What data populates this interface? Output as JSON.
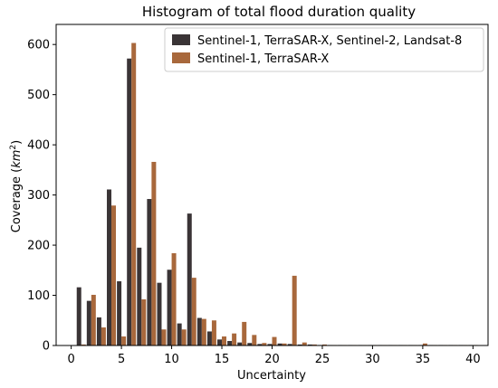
{
  "chart_data": {
    "type": "bar",
    "title": "Histogram of total flood duration quality",
    "xlabel": "Uncertainty",
    "ylabel_main": "Coverage (",
    "ylabel_unit": "km",
    "ylabel_sup": "2",
    "ylabel_close": ")",
    "xlim": [
      -1.5,
      41.5
    ],
    "ylim": [
      0,
      640
    ],
    "xticks": [
      0,
      5,
      10,
      15,
      20,
      25,
      30,
      35,
      40
    ],
    "yticks": [
      0,
      100,
      200,
      300,
      400,
      500,
      600
    ],
    "legend_position": "top-right",
    "bar_width": 0.45,
    "series": [
      {
        "name": "Sentinel-1, TerraSAR-X, Sentinel-2, Landsat-8",
        "color": "#3a3436",
        "offset": -0.225,
        "x": [
          1,
          2,
          3,
          4,
          5,
          6,
          7,
          8,
          9,
          10,
          11,
          12,
          13,
          14,
          15,
          16,
          17,
          18,
          19,
          20,
          21,
          22,
          23,
          24,
          25,
          26,
          27,
          28,
          29,
          30,
          31,
          32,
          33,
          34,
          35,
          36,
          37,
          38,
          39,
          40
        ],
        "values": [
          116,
          89,
          56,
          311,
          128,
          572,
          195,
          292,
          125,
          151,
          44,
          263,
          55,
          28,
          12,
          9,
          6,
          5,
          3,
          3,
          4,
          3,
          2,
          2,
          1,
          1,
          1,
          1,
          1,
          1,
          1,
          1,
          1,
          1,
          1,
          1,
          1,
          1,
          1,
          1
        ]
      },
      {
        "name": "Sentinel-1, TerraSAR-X",
        "color": "#a8683c",
        "offset": 0.225,
        "x": [
          1,
          2,
          3,
          4,
          5,
          6,
          7,
          8,
          9,
          10,
          11,
          12,
          13,
          14,
          15,
          16,
          17,
          18,
          19,
          20,
          21,
          22,
          23,
          24,
          25,
          26,
          27,
          28,
          29,
          30,
          31,
          32,
          33,
          34,
          35,
          36,
          37,
          38,
          39,
          40
        ],
        "values": [
          2,
          101,
          36,
          279,
          18,
          603,
          92,
          366,
          32,
          184,
          32,
          135,
          53,
          50,
          18,
          24,
          47,
          21,
          5,
          17,
          4,
          139,
          6,
          2,
          2,
          1,
          1,
          1,
          1,
          1,
          1,
          1,
          1,
          1,
          4,
          1,
          1,
          1,
          1,
          1
        ]
      }
    ]
  }
}
